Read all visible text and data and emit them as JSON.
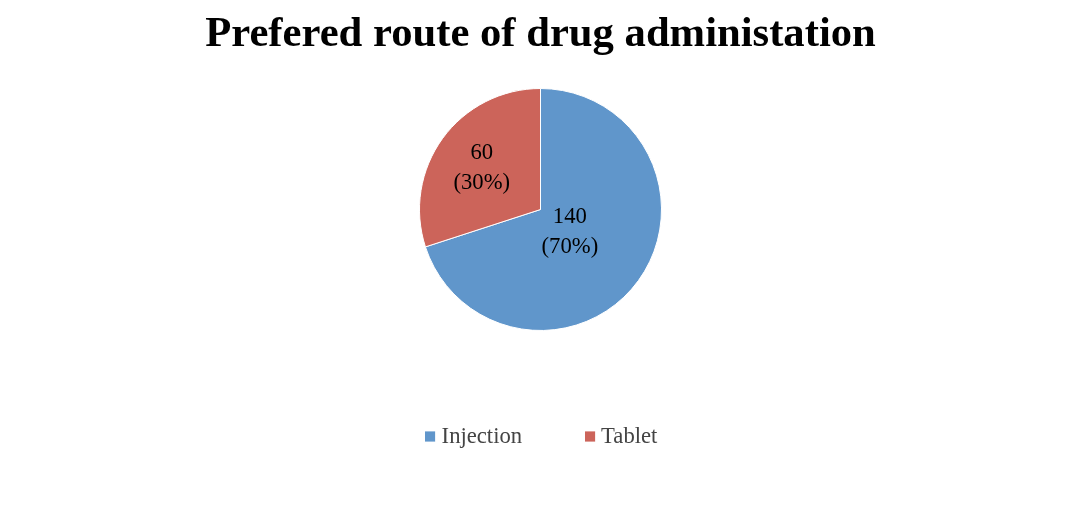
{
  "chart_data": {
    "type": "pie",
    "title": "Prefered route of drug administation",
    "categories": [
      "Injection",
      "Tablet"
    ],
    "values": [
      140,
      60
    ],
    "colors": [
      "#6096cb",
      "#cc645a"
    ],
    "value_labels": [
      "140\n(70%)",
      "60\n(30%)"
    ],
    "legend": "bottom"
  }
}
